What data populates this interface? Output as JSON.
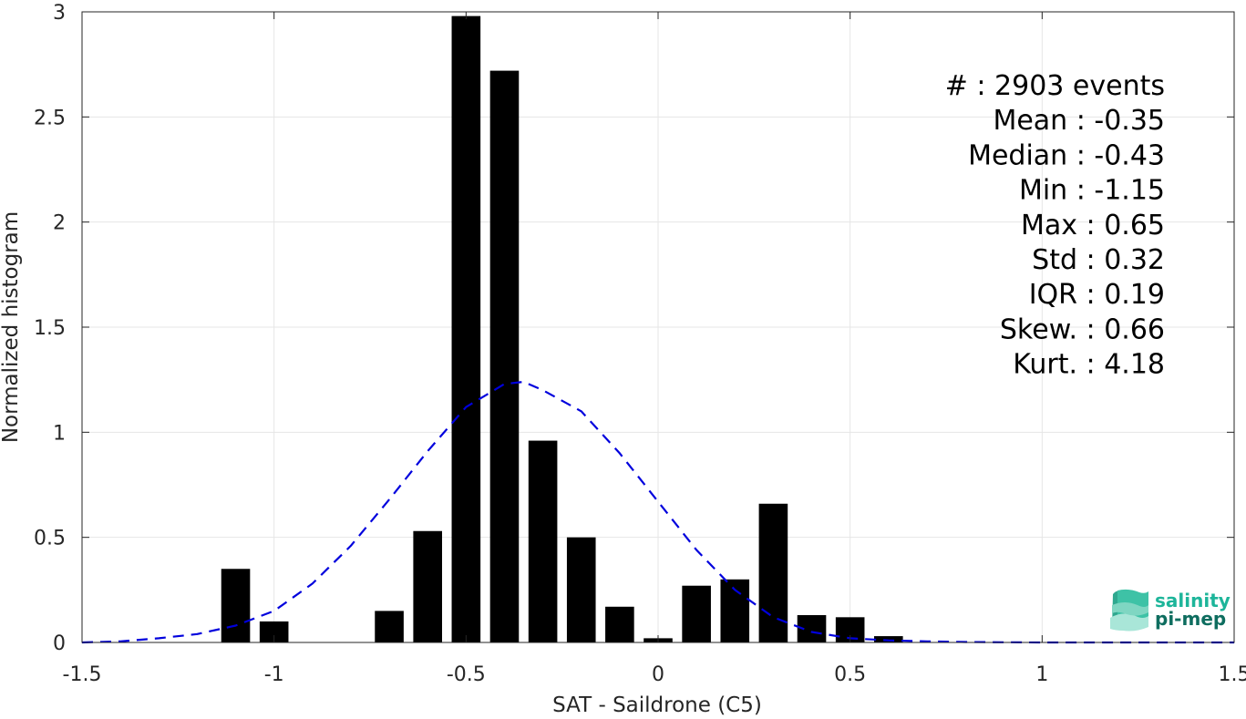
{
  "chart_data": {
    "type": "bar",
    "xlabel": "SAT - Saildrone (C5)",
    "ylabel": "Normalized histogram",
    "xlim": [
      -1.5,
      1.5
    ],
    "ylim": [
      0,
      3
    ],
    "grid": true,
    "x_ticks": [
      -1.5,
      -1,
      -0.5,
      0,
      0.5,
      1,
      1.5
    ],
    "x_tick_labels": [
      "-1.5",
      "-1",
      "-0.5",
      "0",
      "0.5",
      "1",
      "1.5"
    ],
    "y_ticks": [
      0,
      0.5,
      1,
      1.5,
      2,
      2.5,
      3
    ],
    "y_tick_labels": [
      "0",
      "0.5",
      "1",
      "1.5",
      "2",
      "2.5",
      "3"
    ],
    "bar_width": 0.075,
    "bars": {
      "x": [
        -1.1,
        -1.0,
        -0.7,
        -0.6,
        -0.5,
        -0.4,
        -0.3,
        -0.2,
        -0.1,
        0.0,
        0.1,
        0.2,
        0.3,
        0.4,
        0.5,
        0.6
      ],
      "values": [
        0.35,
        0.1,
        0.15,
        0.53,
        2.98,
        2.72,
        0.96,
        0.5,
        0.17,
        0.02,
        0.27,
        0.3,
        0.66,
        0.13,
        0.12,
        0.03
      ],
      "color": "#000000"
    },
    "fit_curve": {
      "style": "dashed",
      "color": "#0000dd",
      "x": [
        -1.5,
        -1.4,
        -1.3,
        -1.2,
        -1.1,
        -1.0,
        -0.9,
        -0.8,
        -0.7,
        -0.6,
        -0.5,
        -0.4,
        -0.35,
        -0.3,
        -0.2,
        -0.1,
        0.0,
        0.1,
        0.2,
        0.3,
        0.4,
        0.5,
        0.6,
        0.7,
        0.8,
        0.9,
        1.0,
        1.1,
        1.2,
        1.3,
        1.4,
        1.5
      ],
      "y": [
        0.0,
        0.005,
        0.02,
        0.04,
        0.08,
        0.15,
        0.28,
        0.46,
        0.68,
        0.91,
        1.12,
        1.23,
        1.24,
        1.2,
        1.1,
        0.9,
        0.67,
        0.44,
        0.25,
        0.12,
        0.05,
        0.02,
        0.01,
        0.005,
        0.002,
        0.001,
        0.0,
        0.0,
        0.0,
        0.0,
        0.0,
        0.0
      ]
    },
    "stats": [
      {
        "label": "#  : 2903 events"
      },
      {
        "label": "Mean : -0.35"
      },
      {
        "label": "Median : -0.43"
      },
      {
        "label": "Min : -1.15"
      },
      {
        "label": "Max : 0.65"
      },
      {
        "label": "Std : 0.32"
      },
      {
        "label": "IQR : 0.19"
      },
      {
        "label": "Skew. : 0.66"
      },
      {
        "label": "Kurt. : 4.18"
      }
    ]
  },
  "logo": {
    "line1": "salinity",
    "line2": "pi-mep",
    "color1": "#1db59a",
    "color2": "#0e6d5f"
  }
}
